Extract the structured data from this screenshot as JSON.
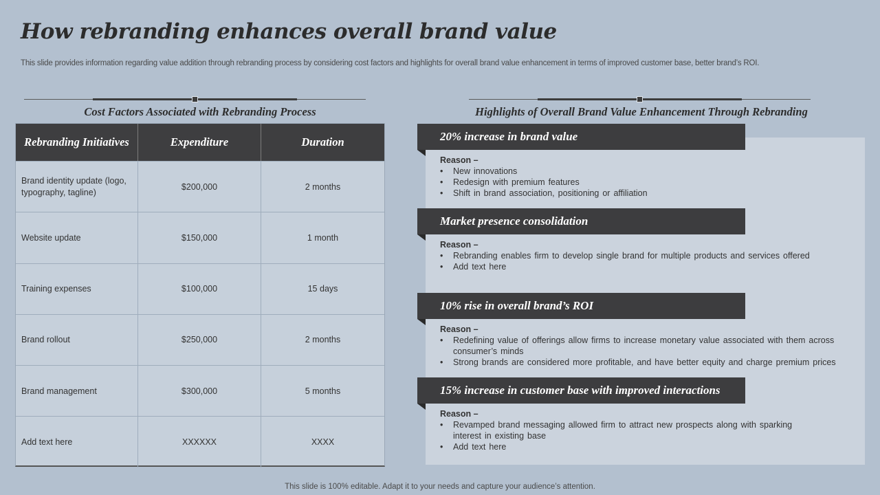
{
  "title": "How rebranding enhances overall brand value",
  "subtitle": "This slide provides information regarding value addition through rebranding process by considering cost factors and highlights for overall brand value enhancement in terms of improved customer base, better brand’s ROI.",
  "left_section": {
    "heading": "Cost Factors Associated with Rebranding Process",
    "table": {
      "headers": [
        "Rebranding Initiatives",
        "Expenditure",
        "Duration"
      ],
      "rows": [
        [
          "Brand identity update (logo, typography, tagline)",
          "$200,000",
          "2 months"
        ],
        [
          "Website update",
          "$150,000",
          "1 month"
        ],
        [
          "Training  expenses",
          "$100,000",
          "15 days"
        ],
        [
          "Brand rollout",
          "$250,000",
          "2 months"
        ],
        [
          "Brand management",
          "$300,000",
          "5 months"
        ],
        [
          "Add text here",
          "XXXXXX",
          "XXXX"
        ]
      ]
    }
  },
  "right_section": {
    "heading": "Highlights of Overall Brand Value Enhancement Through Rebranding",
    "highlights": [
      {
        "title": "20% increase in brand value",
        "reason_label": "Reason –",
        "bullets": [
          "New innovations",
          "Redesign with premium features",
          "Shift in brand association, positioning or affiliation"
        ]
      },
      {
        "title": "Market presence consolidation",
        "reason_label": "Reason –",
        "bullets": [
          "Rebranding enables firm to develop  single brand for multiple products and services offered",
          "Add text here"
        ]
      },
      {
        "title": "10% rise in overall brand’s ROI",
        "reason_label": "Reason –",
        "bullets": [
          "Redefining value of offerings allow firms to increase monetary value associated with them across consumer’s minds",
          "Strong brands are considered more profitable, and have better equity and charge premium prices"
        ]
      },
      {
        "title": "15% increase in customer base with improved interactions",
        "reason_label": "Reason –",
        "bullets": [
          "Revamped  brand messaging allowed firm to attract new prospects along with sparking interest in existing base",
          "Add text here"
        ]
      }
    ]
  },
  "footer": "This slide is 100% editable. Adapt it to your needs and capture your audience’s attention."
}
